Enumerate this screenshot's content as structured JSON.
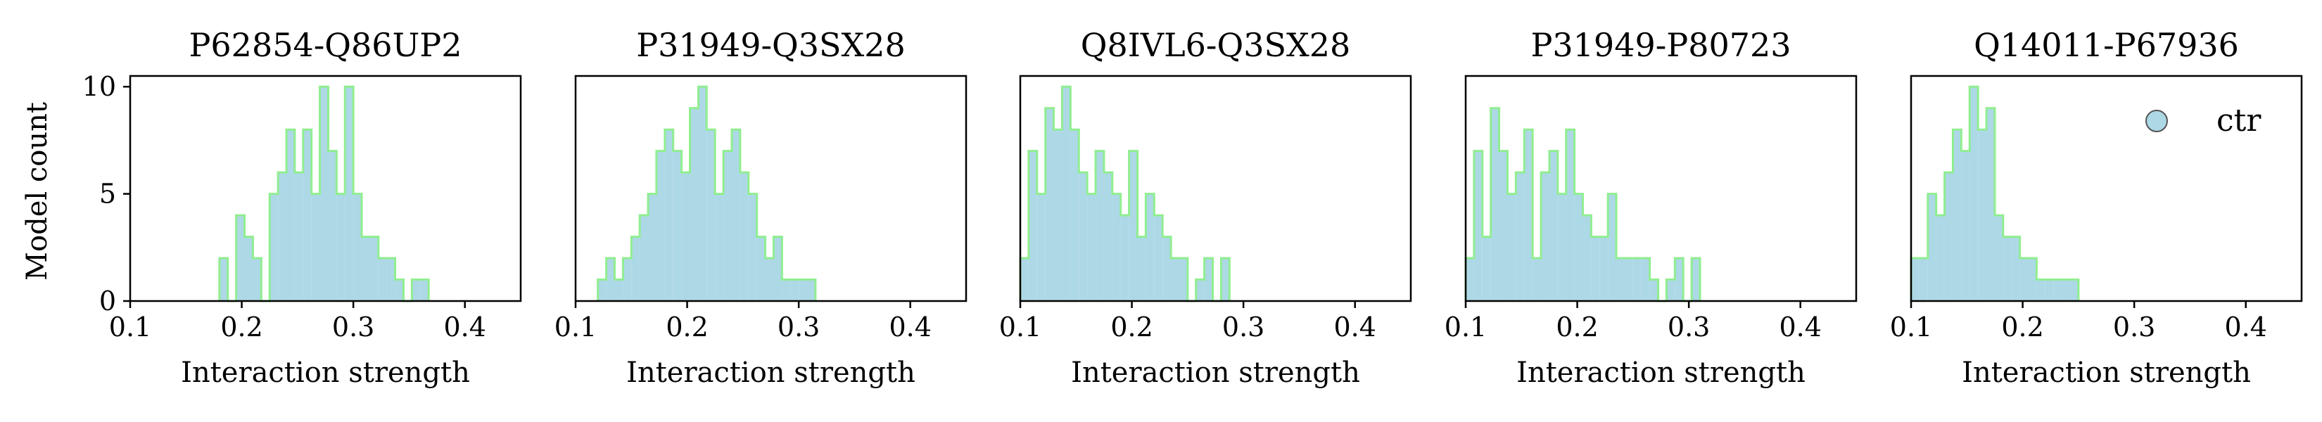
{
  "chart_data": [
    {
      "type": "histogram",
      "title": "P62854-Q86UP2",
      "xlabel": "Interaction strength",
      "ylabel": "Model count",
      "xlim": [
        0.1,
        0.45
      ],
      "ylim": [
        0,
        10.5
      ],
      "xticks": [
        "0.1",
        "0.2",
        "0.3",
        "0.4"
      ],
      "yticks": [
        "0",
        "5",
        "10"
      ],
      "bin_width": 0.0075,
      "bins_start": 0.18,
      "counts": [
        2,
        0,
        4,
        3,
        2,
        0,
        5,
        6,
        8,
        6,
        8,
        5,
        10,
        7,
        5,
        10,
        5,
        3,
        3,
        2,
        2,
        1,
        0,
        1,
        1
      ]
    },
    {
      "type": "histogram",
      "title": "P31949-Q3SX28",
      "xlabel": "Interaction strength",
      "xlim": [
        0.1,
        0.45
      ],
      "ylim": [
        0,
        10.5
      ],
      "xticks": [
        "0.1",
        "0.2",
        "0.3",
        "0.4"
      ],
      "bin_width": 0.0075,
      "bins_start": 0.12,
      "counts": [
        1,
        2,
        1,
        2,
        3,
        4,
        5,
        7,
        8,
        7,
        6,
        9,
        10,
        8,
        5,
        7,
        8,
        6,
        5,
        3,
        2,
        3,
        1,
        1,
        1,
        1
      ]
    },
    {
      "type": "histogram",
      "title": "Q8IVL6-Q3SX28",
      "xlabel": "Interaction strength",
      "xlim": [
        0.1,
        0.45
      ],
      "ylim": [
        0,
        10.5
      ],
      "xticks": [
        "0.1",
        "0.2",
        "0.3",
        "0.4"
      ],
      "bin_width": 0.0075,
      "bins_start": 0.1,
      "counts": [
        2,
        7,
        5,
        9,
        8,
        10,
        8,
        6,
        5,
        7,
        6,
        5,
        4,
        7,
        3,
        5,
        4,
        3,
        2,
        2,
        0,
        1,
        2,
        0,
        2
      ]
    },
    {
      "type": "histogram",
      "title": "P31949-P80723",
      "xlabel": "Interaction strength",
      "xlim": [
        0.1,
        0.45
      ],
      "ylim": [
        0,
        10.5
      ],
      "xticks": [
        "0.1",
        "0.2",
        "0.3",
        "0.4"
      ],
      "bin_width": 0.0075,
      "bins_start": 0.1,
      "counts": [
        2,
        7,
        3,
        9,
        7,
        5,
        6,
        8,
        2,
        6,
        7,
        5,
        8,
        5,
        4,
        3,
        3,
        5,
        2,
        2,
        2,
        2,
        1,
        0,
        1,
        2,
        0,
        2
      ]
    },
    {
      "type": "histogram",
      "title": "Q14011-P67936",
      "xlabel": "Interaction strength",
      "xlim": [
        0.1,
        0.45
      ],
      "ylim": [
        0,
        10.5
      ],
      "xticks": [
        "0.1",
        "0.2",
        "0.3",
        "0.4"
      ],
      "bin_width": 0.0075,
      "bins_start": 0.1,
      "counts": [
        2,
        2,
        5,
        4,
        6,
        8,
        7,
        10,
        8,
        9,
        4,
        3,
        3,
        2,
        2,
        1,
        1,
        1,
        1,
        1
      ]
    }
  ],
  "legend": {
    "label": "ctr",
    "position": "upper right of last panel"
  },
  "colors": {
    "fill": "#add8e6",
    "edge": "#90ee90",
    "legend_marker": "#add8e6"
  }
}
